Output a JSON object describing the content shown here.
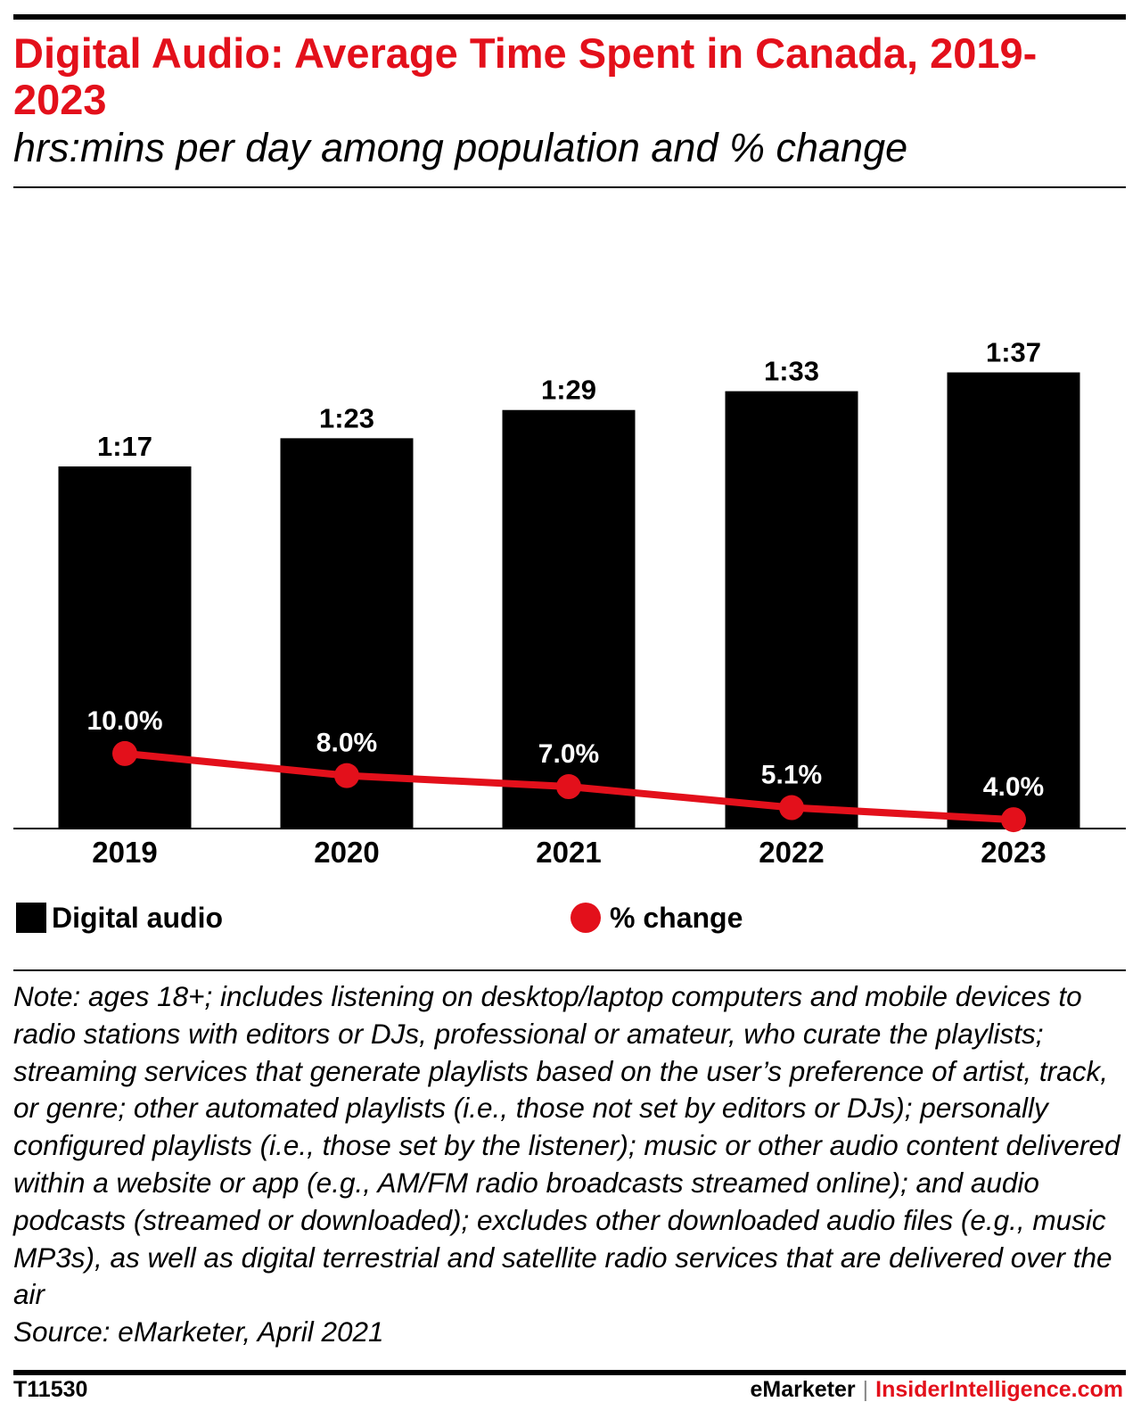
{
  "header": {
    "title": "Digital Audio: Average Time Spent in Canada, 2019-2023",
    "subtitle": "hrs:mins per day among population and % change"
  },
  "legend": {
    "digital_audio": "Digital audio",
    "pct_change": "% change"
  },
  "note": {
    "text": "Note: ages 18+; includes listening on desktop/laptop computers and mobile devices to radio stations with editors or DJs, professional or amateur, who curate the playlists; streaming services that generate playlists based on the user’s preference of artist, track, or genre; other automated playlists (i.e., those not set by editors or DJs); personally configured playlists (i.e., those set by the listener); music or other audio content delivered within a website or app (e.g., AM/FM radio broadcasts streamed online); and audio podcasts (streamed or downloaded); excludes other downloaded audio files (e.g., music MP3s), as well as digital terrestrial and satellite radio services that are delivered over the air",
    "source": "Source: eMarketer, April 2021"
  },
  "footer": {
    "chart_id": "T11530",
    "brand": "eMarketer",
    "separator": "|",
    "site": "InsiderIntelligence.com"
  },
  "colors": {
    "bar": "#000000",
    "line": "#e3101b",
    "title": "#e3101b"
  },
  "chart_data": {
    "type": "bar",
    "title": "Digital Audio: Average Time Spent in Canada, 2019-2023",
    "subtitle": "hrs:mins per day among population and % change",
    "categories": [
      "2019",
      "2020",
      "2021",
      "2022",
      "2023"
    ],
    "series": [
      {
        "name": "Digital audio",
        "type": "bar",
        "values_minutes": [
          77,
          83,
          89,
          93,
          97
        ],
        "labels": [
          "1:17",
          "1:23",
          "1:29",
          "1:33",
          "1:37"
        ]
      },
      {
        "name": "% change",
        "type": "line",
        "values": [
          10.0,
          8.0,
          7.0,
          5.1,
          4.0
        ],
        "labels": [
          "10.0%",
          "8.0%",
          "7.0%",
          "5.1%",
          "4.0%"
        ]
      }
    ],
    "grid": false,
    "legend_position": "bottom"
  }
}
